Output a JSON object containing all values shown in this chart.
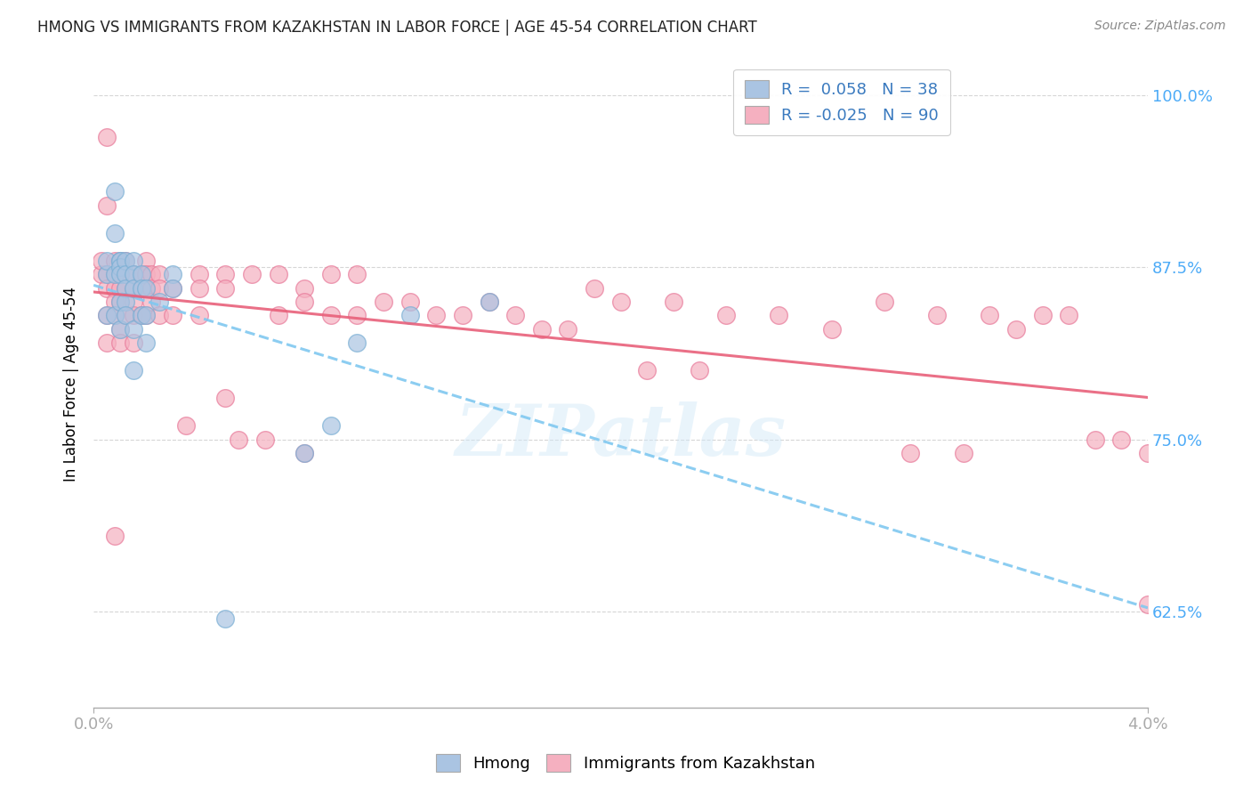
{
  "title": "HMONG VS IMMIGRANTS FROM KAZAKHSTAN IN LABOR FORCE | AGE 45-54 CORRELATION CHART",
  "source": "Source: ZipAtlas.com",
  "ylabel": "In Labor Force | Age 45-54",
  "yticks": [
    0.625,
    0.75,
    0.875,
    1.0
  ],
  "ytick_labels": [
    "62.5%",
    "75.0%",
    "87.5%",
    "100.0%"
  ],
  "xmin": 0.0,
  "xmax": 0.04,
  "ymin": 0.555,
  "ymax": 1.025,
  "watermark": "ZIPatlas",
  "blue_color": "#aac4e2",
  "pink_color": "#f5b0c0",
  "blue_edge": "#7aafd4",
  "pink_edge": "#e87a9a",
  "trend_blue_solid": "#3a7abf",
  "trend_blue_dash": "#80c8f0",
  "trend_pink": "#e8607a",
  "hmong_x": [
    0.0005,
    0.0005,
    0.0005,
    0.0008,
    0.0008,
    0.0008,
    0.0008,
    0.001,
    0.001,
    0.001,
    0.001,
    0.001,
    0.001,
    0.0012,
    0.0012,
    0.0012,
    0.0012,
    0.0012,
    0.0015,
    0.0015,
    0.0015,
    0.0015,
    0.0015,
    0.0018,
    0.0018,
    0.0018,
    0.002,
    0.002,
    0.002,
    0.0025,
    0.003,
    0.003,
    0.005,
    0.008,
    0.009,
    0.01,
    0.012,
    0.015
  ],
  "hmong_y": [
    0.84,
    0.87,
    0.88,
    0.9,
    0.93,
    0.87,
    0.84,
    0.88,
    0.88,
    0.875,
    0.87,
    0.85,
    0.83,
    0.88,
    0.87,
    0.86,
    0.85,
    0.84,
    0.88,
    0.87,
    0.86,
    0.83,
    0.8,
    0.87,
    0.86,
    0.84,
    0.86,
    0.84,
    0.82,
    0.85,
    0.87,
    0.86,
    0.62,
    0.74,
    0.76,
    0.82,
    0.84,
    0.85
  ],
  "kaz_x": [
    0.0003,
    0.0003,
    0.0005,
    0.0005,
    0.0005,
    0.0005,
    0.0005,
    0.0005,
    0.0008,
    0.0008,
    0.0008,
    0.0008,
    0.0008,
    0.0008,
    0.001,
    0.001,
    0.001,
    0.001,
    0.001,
    0.001,
    0.0012,
    0.0012,
    0.0012,
    0.0012,
    0.0015,
    0.0015,
    0.0015,
    0.0015,
    0.0015,
    0.0018,
    0.0018,
    0.0018,
    0.002,
    0.002,
    0.002,
    0.002,
    0.0022,
    0.0022,
    0.0022,
    0.0025,
    0.0025,
    0.0025,
    0.003,
    0.003,
    0.004,
    0.004,
    0.004,
    0.005,
    0.005,
    0.005,
    0.006,
    0.007,
    0.007,
    0.008,
    0.008,
    0.008,
    0.009,
    0.009,
    0.01,
    0.01,
    0.012,
    0.013,
    0.015,
    0.016,
    0.017,
    0.019,
    0.02,
    0.022,
    0.024,
    0.026,
    0.028,
    0.03,
    0.032,
    0.034,
    0.035,
    0.036,
    0.037,
    0.038,
    0.039,
    0.04,
    0.04,
    0.033,
    0.031,
    0.021,
    0.023,
    0.014,
    0.018,
    0.011,
    0.0055,
    0.0065,
    0.0035
  ],
  "kaz_y": [
    0.87,
    0.88,
    0.97,
    0.92,
    0.87,
    0.86,
    0.84,
    0.82,
    0.88,
    0.87,
    0.86,
    0.85,
    0.84,
    0.68,
    0.88,
    0.87,
    0.86,
    0.85,
    0.83,
    0.82,
    0.88,
    0.87,
    0.86,
    0.84,
    0.87,
    0.86,
    0.85,
    0.84,
    0.82,
    0.87,
    0.86,
    0.84,
    0.88,
    0.87,
    0.86,
    0.84,
    0.87,
    0.86,
    0.85,
    0.87,
    0.86,
    0.84,
    0.86,
    0.84,
    0.87,
    0.86,
    0.84,
    0.87,
    0.86,
    0.78,
    0.87,
    0.87,
    0.84,
    0.86,
    0.85,
    0.74,
    0.87,
    0.84,
    0.87,
    0.84,
    0.85,
    0.84,
    0.85,
    0.84,
    0.83,
    0.86,
    0.85,
    0.85,
    0.84,
    0.84,
    0.83,
    0.85,
    0.84,
    0.84,
    0.83,
    0.84,
    0.84,
    0.75,
    0.75,
    0.74,
    0.63,
    0.74,
    0.74,
    0.8,
    0.8,
    0.84,
    0.83,
    0.85,
    0.75,
    0.75,
    0.76
  ]
}
